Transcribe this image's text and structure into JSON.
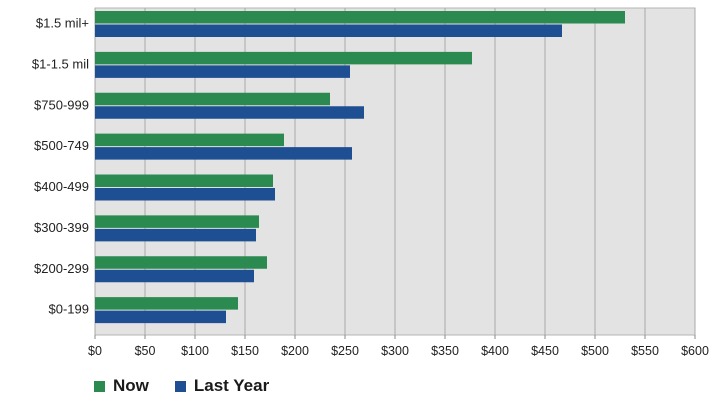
{
  "chart_data": {
    "type": "bar",
    "orientation": "horizontal",
    "title": "",
    "xlabel": "",
    "ylabel": "",
    "categories": [
      "$1.5 mil+",
      "$1-1.5 mil",
      "$750-999",
      "$500-749",
      "$400-499",
      "$300-399",
      "$200-299",
      "$0-199"
    ],
    "series": [
      {
        "name": "Now",
        "color": "#2a8a4f",
        "values": [
          530,
          377,
          235,
          189,
          178,
          164,
          172,
          143
        ]
      },
      {
        "name": "Last Year",
        "color": "#1e4f92",
        "values": [
          467,
          255,
          269,
          257,
          180,
          161,
          159,
          131
        ]
      }
    ],
    "xlim": [
      0,
      600
    ],
    "xticks": [
      0,
      50,
      100,
      150,
      200,
      250,
      300,
      350,
      400,
      450,
      500,
      550,
      600
    ],
    "xtick_labels": [
      "$0",
      "$50",
      "$100",
      "$150",
      "$200",
      "$250",
      "$300",
      "$350",
      "$400",
      "$450",
      "$500",
      "$550",
      "$600"
    ],
    "grid": "vertical",
    "plot_background": "#e3e3e3",
    "legend_position": "bottom-left"
  }
}
